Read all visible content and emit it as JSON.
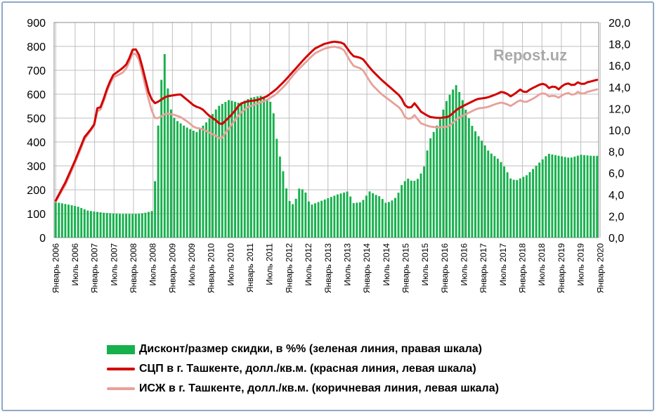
{
  "chart_data": {
    "type": "bar+line",
    "watermark": "Repost.uz",
    "left_axis": {
      "range": [
        0,
        900
      ],
      "ticks": [
        "0",
        "100",
        "200",
        "300",
        "400",
        "500",
        "600",
        "700",
        "800",
        "900"
      ]
    },
    "right_axis": {
      "range": [
        0,
        20
      ],
      "ticks": [
        "0,0",
        "2,0",
        "4,0",
        "6,0",
        "8,0",
        "10,0",
        "12,0",
        "14,0",
        "16,0",
        "18,0",
        "20,0"
      ]
    },
    "x_ticks": [
      "Январь 2006",
      "Июль 2006",
      "Январь 2007",
      "Июль 2007",
      "Январь 2008",
      "Июль 2008",
      "Январь 2009",
      "Июль 2009",
      "Январь 2010",
      "Июль 2010",
      "Январь 2011",
      "Июль 2011",
      "Январь 2012",
      "Июль 2012",
      "Январь 2013",
      "Июль 2013",
      "Январь 2014",
      "Июль 2014",
      "Январь 2015",
      "Июль 2015",
      "Январь 2016",
      "Июль 2016",
      "Январь 2017",
      "Июль 2017",
      "Январь 2018",
      "Июль 2018",
      "Январь 2019",
      "Июль 2019",
      "Январь 2020"
    ],
    "months": 170,
    "series": [
      {
        "name": "Дисконт/размер скидки, в %% (зеленая линия, правая шкала)",
        "axis": "right",
        "style": "bar",
        "color": "#16b04c",
        "anchors": [
          [
            0,
            3.3
          ],
          [
            4,
            3.1
          ],
          [
            8,
            2.9
          ],
          [
            12,
            2.5
          ],
          [
            18,
            2.3
          ],
          [
            24,
            2.2
          ],
          [
            30,
            2.2
          ],
          [
            33,
            2.3
          ],
          [
            36,
            2.5
          ],
          [
            37,
            6.5
          ],
          [
            38,
            11.0
          ],
          [
            39,
            14.5
          ],
          [
            40,
            17.7
          ],
          [
            41,
            15.0
          ],
          [
            42,
            12.3
          ],
          [
            44,
            11.0
          ],
          [
            48,
            10.3
          ],
          [
            52,
            9.8
          ],
          [
            56,
            10.8
          ],
          [
            60,
            12.2
          ],
          [
            64,
            12.8
          ],
          [
            68,
            12.5
          ],
          [
            72,
            13.0
          ],
          [
            76,
            13.2
          ],
          [
            80,
            12.5
          ],
          [
            81,
            10.5
          ],
          [
            82,
            8.5
          ],
          [
            84,
            6.2
          ],
          [
            86,
            3.5
          ],
          [
            88,
            3.0
          ],
          [
            90,
            4.6
          ],
          [
            92,
            4.4
          ],
          [
            94,
            3.0
          ],
          [
            97,
            3.3
          ],
          [
            100,
            3.6
          ],
          [
            104,
            4.0
          ],
          [
            108,
            4.3
          ],
          [
            110,
            3.2
          ],
          [
            113,
            3.3
          ],
          [
            116,
            4.3
          ],
          [
            118,
            4.0
          ],
          [
            120,
            3.8
          ],
          [
            122,
            3.2
          ],
          [
            124,
            3.4
          ],
          [
            126,
            3.8
          ],
          [
            128,
            5.0
          ],
          [
            130,
            5.5
          ],
          [
            132,
            5.2
          ],
          [
            134,
            5.5
          ],
          [
            136,
            6.5
          ],
          [
            138,
            9.0
          ],
          [
            140,
            10.0
          ],
          [
            142,
            11.0
          ],
          [
            144,
            12.5
          ],
          [
            146,
            13.5
          ],
          [
            148,
            14.2
          ],
          [
            150,
            13.0
          ],
          [
            152,
            11.5
          ],
          [
            154,
            10.3
          ],
          [
            156,
            9.5
          ],
          [
            158,
            8.8
          ],
          [
            160,
            8.0
          ],
          [
            162,
            7.6
          ],
          [
            164,
            7.2
          ],
          [
            166,
            6.5
          ],
          [
            168,
            5.5
          ],
          [
            170,
            5.3
          ],
          [
            174,
            5.8
          ],
          [
            178,
            6.8
          ],
          [
            182,
            7.8
          ],
          [
            186,
            7.6
          ],
          [
            190,
            7.4
          ],
          [
            194,
            7.7
          ],
          [
            198,
            7.6
          ],
          [
            200,
            7.6
          ]
        ]
      },
      {
        "name": "СЦП в г. Ташкенте, долл./кв.м. (красная линия, левая шкала)",
        "axis": "left",
        "style": "line",
        "color": "#d20000",
        "anchors": [
          [
            0,
            155
          ],
          [
            4,
            230
          ],
          [
            8,
            320
          ],
          [
            12,
            420
          ],
          [
            14,
            445
          ],
          [
            16,
            470
          ],
          [
            17,
            545
          ],
          [
            18,
            535
          ],
          [
            19,
            550
          ],
          [
            22,
            640
          ],
          [
            24,
            680
          ],
          [
            26,
            695
          ],
          [
            28,
            710
          ],
          [
            30,
            730
          ],
          [
            32,
            785
          ],
          [
            33,
            795
          ],
          [
            35,
            760
          ],
          [
            37,
            680
          ],
          [
            39,
            600
          ],
          [
            41,
            560
          ],
          [
            43,
            570
          ],
          [
            46,
            590
          ],
          [
            49,
            595
          ],
          [
            52,
            600
          ],
          [
            55,
            575
          ],
          [
            58,
            550
          ],
          [
            61,
            540
          ],
          [
            64,
            510
          ],
          [
            67,
            490
          ],
          [
            69,
            470
          ],
          [
            71,
            490
          ],
          [
            74,
            520
          ],
          [
            77,
            560
          ],
          [
            80,
            570
          ],
          [
            84,
            575
          ],
          [
            88,
            590
          ],
          [
            92,
            620
          ],
          [
            96,
            660
          ],
          [
            100,
            705
          ],
          [
            104,
            750
          ],
          [
            108,
            790
          ],
          [
            112,
            810
          ],
          [
            116,
            820
          ],
          [
            120,
            815
          ],
          [
            124,
            760
          ],
          [
            128,
            750
          ],
          [
            132,
            700
          ],
          [
            136,
            660
          ],
          [
            140,
            625
          ],
          [
            144,
            590
          ],
          [
            146,
            550
          ],
          [
            148,
            540
          ],
          [
            150,
            565
          ],
          [
            152,
            530
          ],
          [
            156,
            505
          ],
          [
            160,
            500
          ],
          [
            164,
            505
          ],
          [
            168,
            540
          ],
          [
            172,
            560
          ],
          [
            176,
            580
          ],
          [
            180,
            585
          ],
          [
            184,
            600
          ],
          [
            186,
            610
          ],
          [
            188,
            605
          ],
          [
            190,
            590
          ],
          [
            192,
            605
          ],
          [
            194,
            620
          ],
          [
            196,
            605
          ],
          [
            198,
            620
          ],
          [
            200,
            630
          ],
          [
            202,
            640
          ],
          [
            204,
            645
          ],
          [
            206,
            625
          ],
          [
            208,
            635
          ],
          [
            210,
            620
          ],
          [
            212,
            640
          ],
          [
            214,
            645
          ],
          [
            216,
            635
          ],
          [
            218,
            650
          ],
          [
            220,
            640
          ],
          [
            222,
            650
          ],
          [
            224,
            655
          ],
          [
            226,
            660
          ]
        ]
      },
      {
        "name": "ИСЖ в г. Ташкенте, долл./кв.м. (коричневая линия, левая шкала)",
        "axis": "left",
        "style": "line",
        "color": "#e8a09a",
        "anchors": [
          [
            0,
            150
          ],
          [
            4,
            220
          ],
          [
            8,
            310
          ],
          [
            12,
            410
          ],
          [
            14,
            440
          ],
          [
            16,
            465
          ],
          [
            17,
            530
          ],
          [
            18,
            525
          ],
          [
            19,
            540
          ],
          [
            22,
            630
          ],
          [
            24,
            670
          ],
          [
            26,
            680
          ],
          [
            28,
            690
          ],
          [
            30,
            715
          ],
          [
            32,
            770
          ],
          [
            33,
            775
          ],
          [
            35,
            740
          ],
          [
            37,
            650
          ],
          [
            39,
            570
          ],
          [
            41,
            500
          ],
          [
            43,
            500
          ],
          [
            46,
            520
          ],
          [
            49,
            515
          ],
          [
            52,
            505
          ],
          [
            55,
            485
          ],
          [
            58,
            460
          ],
          [
            61,
            455
          ],
          [
            64,
            440
          ],
          [
            67,
            425
          ],
          [
            69,
            410
          ],
          [
            71,
            440
          ],
          [
            74,
            480
          ],
          [
            77,
            520
          ],
          [
            80,
            545
          ],
          [
            84,
            560
          ],
          [
            88,
            575
          ],
          [
            92,
            600
          ],
          [
            96,
            640
          ],
          [
            100,
            690
          ],
          [
            104,
            730
          ],
          [
            108,
            770
          ],
          [
            112,
            790
          ],
          [
            116,
            800
          ],
          [
            120,
            790
          ],
          [
            124,
            720
          ],
          [
            128,
            705
          ],
          [
            132,
            640
          ],
          [
            136,
            600
          ],
          [
            140,
            570
          ],
          [
            144,
            540
          ],
          [
            146,
            500
          ],
          [
            148,
            495
          ],
          [
            150,
            515
          ],
          [
            152,
            480
          ],
          [
            156,
            465
          ],
          [
            160,
            460
          ],
          [
            164,
            465
          ],
          [
            168,
            500
          ],
          [
            172,
            520
          ],
          [
            176,
            540
          ],
          [
            180,
            545
          ],
          [
            184,
            560
          ],
          [
            186,
            565
          ],
          [
            188,
            560
          ],
          [
            190,
            550
          ],
          [
            192,
            565
          ],
          [
            194,
            575
          ],
          [
            196,
            565
          ],
          [
            198,
            575
          ],
          [
            200,
            585
          ],
          [
            202,
            600
          ],
          [
            204,
            605
          ],
          [
            206,
            590
          ],
          [
            208,
            595
          ],
          [
            210,
            585
          ],
          [
            212,
            600
          ],
          [
            214,
            605
          ],
          [
            216,
            595
          ],
          [
            218,
            610
          ],
          [
            220,
            600
          ],
          [
            222,
            610
          ],
          [
            224,
            615
          ],
          [
            226,
            620
          ]
        ]
      }
    ]
  }
}
